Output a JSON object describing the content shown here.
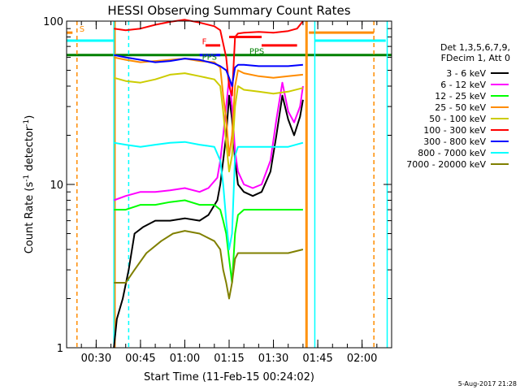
{
  "chart_data": {
    "type": "line",
    "title": "HESSI Observing Summary Count Rates",
    "xlabel": "Start Time (11-Feb-15 00:24:02)",
    "ylabel_main": "Count Rate (s",
    "ylabel_sup": "-1",
    "ylabel_rest": " detector",
    "ylabel_sup2": "-1",
    "ylabel_close": ")",
    "y_scale": "log",
    "ylim": [
      1,
      100
    ],
    "y_ticks": [
      {
        "value": 1,
        "label": "1"
      },
      {
        "value": 10,
        "label": "10"
      },
      {
        "value": 100,
        "label": "100"
      }
    ],
    "xlim_minutes": [
      20,
      130
    ],
    "x_ticks": [
      {
        "minute": 30,
        "label": "00:30"
      },
      {
        "minute": 45,
        "label": "00:45"
      },
      {
        "minute": 60,
        "label": "01:00"
      },
      {
        "minute": 75,
        "label": "01:15"
      },
      {
        "minute": 90,
        "label": "01:30"
      },
      {
        "minute": 105,
        "label": "01:45"
      },
      {
        "minute": 120,
        "label": "02:00"
      }
    ],
    "legend_placement": "right",
    "legend_header": [
      "Det 1,3,5,6,7,9,",
      "FDecim 1, Att 0"
    ],
    "series": [
      {
        "name": "3 - 6 keV",
        "color": "#000000",
        "values": [
          [
            36,
            1.0
          ],
          [
            37,
            1.5
          ],
          [
            39,
            2.0
          ],
          [
            41,
            3.0
          ],
          [
            43,
            5.0
          ],
          [
            46,
            5.5
          ],
          [
            50,
            6.0
          ],
          [
            55,
            6.0
          ],
          [
            60,
            6.2
          ],
          [
            65,
            6.0
          ],
          [
            68,
            6.5
          ],
          [
            71,
            8.0
          ],
          [
            72,
            10.0
          ],
          [
            73,
            14.0
          ],
          [
            74,
            20.0
          ],
          [
            75,
            35.0
          ],
          [
            76,
            25.0
          ],
          [
            77,
            14.0
          ],
          [
            78,
            10.0
          ],
          [
            80,
            9.0
          ],
          [
            83,
            8.5
          ],
          [
            86,
            9.0
          ],
          [
            89,
            12.0
          ],
          [
            91,
            20.0
          ],
          [
            93,
            35.0
          ],
          [
            95,
            25.0
          ],
          [
            97,
            20.0
          ],
          [
            99,
            26.0
          ],
          [
            100,
            33.0
          ]
        ]
      },
      {
        "name": "6 - 12 keV",
        "color": "#ff00ff",
        "values": [
          [
            36,
            8.0
          ],
          [
            40,
            8.5
          ],
          [
            45,
            9.0
          ],
          [
            50,
            9.0
          ],
          [
            55,
            9.2
          ],
          [
            60,
            9.5
          ],
          [
            65,
            9.0
          ],
          [
            68,
            9.5
          ],
          [
            71,
            11.0
          ],
          [
            72,
            14.0
          ],
          [
            73,
            20.0
          ],
          [
            74,
            30.0
          ],
          [
            75,
            45.0
          ],
          [
            76,
            30.0
          ],
          [
            77,
            16.0
          ],
          [
            78,
            12.0
          ],
          [
            80,
            10.0
          ],
          [
            83,
            9.5
          ],
          [
            86,
            10.0
          ],
          [
            89,
            14.0
          ],
          [
            91,
            25.0
          ],
          [
            93,
            42.0
          ],
          [
            95,
            28.0
          ],
          [
            97,
            24.0
          ],
          [
            99,
            30.0
          ],
          [
            100,
            40.0
          ]
        ]
      },
      {
        "name": "12 - 25 keV",
        "color": "#00ff00",
        "values": [
          [
            36,
            7.0
          ],
          [
            40,
            7.0
          ],
          [
            45,
            7.5
          ],
          [
            50,
            7.5
          ],
          [
            55,
            7.8
          ],
          [
            60,
            8.0
          ],
          [
            65,
            7.5
          ],
          [
            70,
            7.5
          ],
          [
            72,
            7.0
          ],
          [
            73,
            6.0
          ],
          [
            74,
            5.0
          ],
          [
            75,
            3.5
          ],
          [
            76,
            2.5
          ],
          [
            77,
            5.0
          ],
          [
            78,
            6.5
          ],
          [
            80,
            7.0
          ],
          [
            85,
            7.0
          ],
          [
            90,
            7.0
          ],
          [
            95,
            7.0
          ],
          [
            100,
            7.0
          ]
        ]
      },
      {
        "name": "25 - 50 keV",
        "color": "#ff8c00",
        "values": [
          [
            36,
            60.0
          ],
          [
            40,
            58.0
          ],
          [
            45,
            56.0
          ],
          [
            50,
            57.0
          ],
          [
            55,
            58.0
          ],
          [
            60,
            59.0
          ],
          [
            65,
            57.0
          ],
          [
            70,
            56.0
          ],
          [
            72,
            52.0
          ],
          [
            73,
            35.0
          ],
          [
            74,
            25.0
          ],
          [
            75,
            15.0
          ],
          [
            76,
            20.0
          ],
          [
            77,
            40.0
          ],
          [
            78,
            50.0
          ],
          [
            80,
            48.0
          ],
          [
            85,
            46.0
          ],
          [
            90,
            45.0
          ],
          [
            95,
            46.0
          ],
          [
            100,
            47.0
          ]
        ]
      },
      {
        "name": "50 - 100 keV",
        "color": "#cccc00",
        "values": [
          [
            36,
            45.0
          ],
          [
            40,
            43.0
          ],
          [
            45,
            42.0
          ],
          [
            50,
            44.0
          ],
          [
            55,
            47.0
          ],
          [
            60,
            48.0
          ],
          [
            65,
            46.0
          ],
          [
            70,
            44.0
          ],
          [
            72,
            40.0
          ],
          [
            73,
            28.0
          ],
          [
            74,
            18.0
          ],
          [
            75,
            12.0
          ],
          [
            76,
            15.0
          ],
          [
            77,
            30.0
          ],
          [
            78,
            40.0
          ],
          [
            80,
            38.0
          ],
          [
            85,
            37.0
          ],
          [
            90,
            36.0
          ],
          [
            95,
            37.0
          ],
          [
            100,
            39.0
          ]
        ]
      },
      {
        "name": "100 - 300 keV",
        "color": "#ff0000",
        "values": [
          [
            36,
            90.0
          ],
          [
            40,
            88.0
          ],
          [
            45,
            90.0
          ],
          [
            50,
            95.0
          ],
          [
            55,
            99.0
          ],
          [
            60,
            102.0
          ],
          [
            65,
            98.0
          ],
          [
            70,
            93.0
          ],
          [
            72,
            88.0
          ],
          [
            74,
            60.0
          ],
          [
            75,
            40.0
          ],
          [
            76,
            35.0
          ],
          [
            77,
            80.0
          ],
          [
            78,
            84.0
          ],
          [
            80,
            85.0
          ],
          [
            85,
            86.0
          ],
          [
            90,
            85.0
          ],
          [
            95,
            87.0
          ],
          [
            98,
            90.0
          ],
          [
            100,
            100.0
          ]
        ]
      },
      {
        "name": "300 - 800 keV",
        "color": "#0000ff",
        "values": [
          [
            36,
            62.0
          ],
          [
            40,
            60.0
          ],
          [
            45,
            58.0
          ],
          [
            50,
            56.0
          ],
          [
            55,
            57.0
          ],
          [
            60,
            59.0
          ],
          [
            65,
            58.0
          ],
          [
            70,
            55.0
          ],
          [
            72,
            53.0
          ],
          [
            74,
            50.0
          ],
          [
            75,
            45.0
          ],
          [
            76,
            40.0
          ],
          [
            77,
            52.0
          ],
          [
            78,
            54.0
          ],
          [
            80,
            54.0
          ],
          [
            85,
            53.0
          ],
          [
            90,
            53.0
          ],
          [
            95,
            53.0
          ],
          [
            100,
            54.0
          ]
        ]
      },
      {
        "name": "800 - 7000 keV",
        "color": "#00ffff",
        "values": [
          [
            36,
            18.0
          ],
          [
            40,
            17.5
          ],
          [
            45,
            17.0
          ],
          [
            50,
            17.5
          ],
          [
            55,
            18.0
          ],
          [
            60,
            18.2
          ],
          [
            65,
            17.5
          ],
          [
            70,
            17.0
          ],
          [
            72,
            14.0
          ],
          [
            73,
            10.0
          ],
          [
            74,
            6.0
          ],
          [
            75,
            4.0
          ],
          [
            76,
            5.0
          ],
          [
            77,
            15.0
          ],
          [
            78,
            17.0
          ],
          [
            80,
            17.0
          ],
          [
            85,
            17.0
          ],
          [
            90,
            17.0
          ],
          [
            95,
            17.0
          ],
          [
            100,
            18.0
          ]
        ]
      },
      {
        "name": "7000 - 20000 keV",
        "color": "#808000",
        "values": [
          [
            36,
            2.5
          ],
          [
            40,
            2.5
          ],
          [
            43,
            3.0
          ],
          [
            47,
            3.8
          ],
          [
            52,
            4.5
          ],
          [
            56,
            5.0
          ],
          [
            60,
            5.2
          ],
          [
            65,
            5.0
          ],
          [
            70,
            4.5
          ],
          [
            72,
            4.0
          ],
          [
            73,
            3.0
          ],
          [
            74,
            2.5
          ],
          [
            75,
            2.0
          ],
          [
            76,
            2.5
          ],
          [
            77,
            3.5
          ],
          [
            78,
            3.8
          ],
          [
            80,
            3.8
          ],
          [
            85,
            3.8
          ],
          [
            90,
            3.8
          ],
          [
            95,
            3.8
          ],
          [
            100,
            4.0
          ]
        ]
      }
    ],
    "vertical_markers": [
      {
        "minute": 23.5,
        "color": "#ff8c00",
        "style": "dashed"
      },
      {
        "minute": 36,
        "color": "#00ffff",
        "style": "solid"
      },
      {
        "minute": 36.4,
        "color": "#ff8c00",
        "style": "solid"
      },
      {
        "minute": 41,
        "color": "#00ffff",
        "style": "dashed"
      },
      {
        "minute": 101,
        "color": "#ff8c00",
        "style": "solid"
      },
      {
        "minute": 101.4,
        "color": "#ff8c00",
        "style": "solid"
      },
      {
        "minute": 104,
        "color": "#00ffff",
        "style": "solid"
      },
      {
        "minute": 124,
        "color": "#ff8c00",
        "style": "dashed"
      },
      {
        "minute": 128.5,
        "color": "#00ffff",
        "style": "solid"
      }
    ],
    "flag_bars": [
      {
        "x0": 20,
        "x1": 130,
        "y": 62,
        "color": "#008000"
      },
      {
        "x0": 20,
        "x1": 36,
        "y": 76,
        "color": "#00ffff"
      },
      {
        "x0": 104,
        "x1": 128,
        "y": 76,
        "color": "#00ffff"
      },
      {
        "x0": 20,
        "x1": 22,
        "y": 85,
        "color": "#ff8c00"
      },
      {
        "x0": 102,
        "x1": 124,
        "y": 85,
        "color": "#ff8c00"
      },
      {
        "x0": 67,
        "x1": 72,
        "y": 71,
        "color": "#ff0000"
      },
      {
        "x0": 75,
        "x1": 86,
        "y": 80,
        "color": "#ff0000"
      },
      {
        "x0": 86,
        "x1": 98,
        "y": 71,
        "color": "#ff0000"
      },
      {
        "x0": 65,
        "x1": 72,
        "y": 62,
        "color": "#0000ff"
      }
    ],
    "annotations": [
      {
        "text": "S",
        "minute": 23.5,
        "y": 86,
        "color": "#ff8c00"
      },
      {
        "text": "F",
        "minute": 65,
        "y": 72,
        "color": "#ff0000"
      },
      {
        "text": "PPS",
        "minute": 81,
        "y": 63,
        "color": "#008000"
      },
      {
        "text": "PPS",
        "minute": 65,
        "y": 58,
        "color": "#008000"
      }
    ],
    "footer_stamp": "5-Aug-2017 21:28"
  }
}
